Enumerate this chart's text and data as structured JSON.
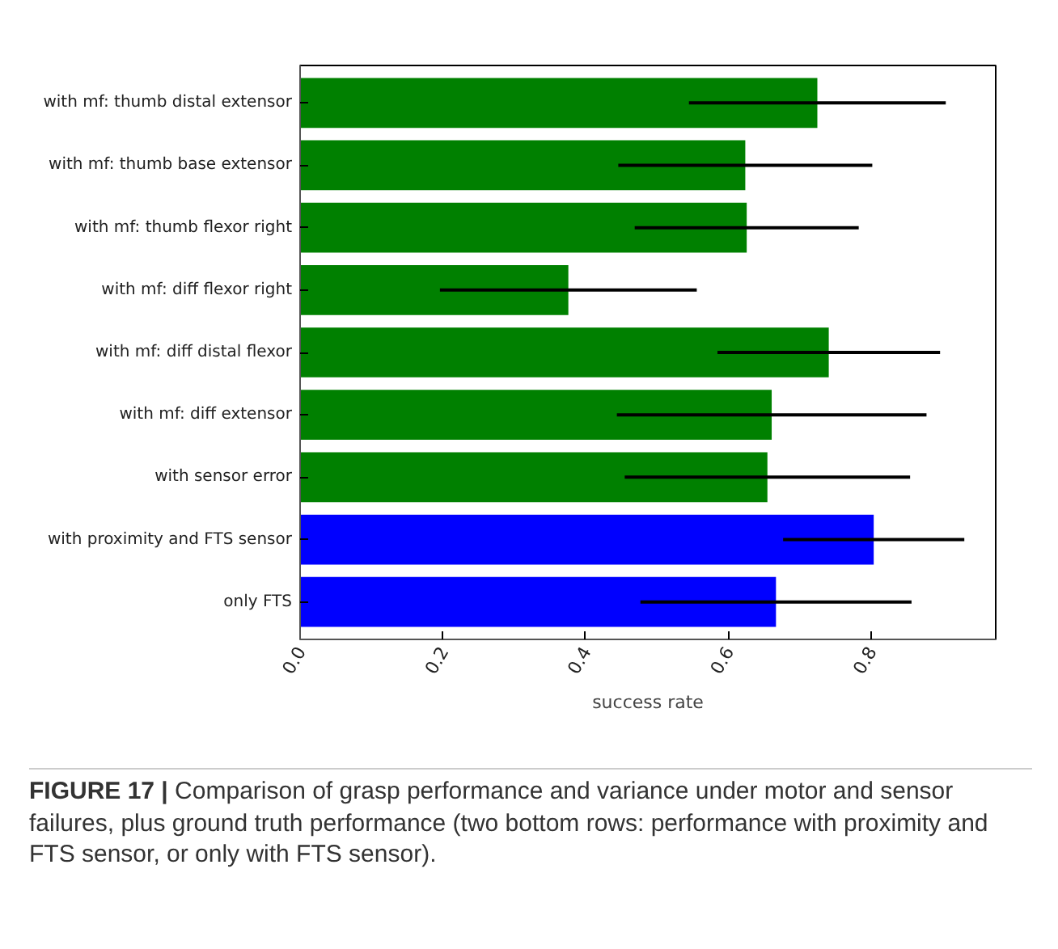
{
  "chart_data": {
    "type": "bar",
    "orientation": "horizontal",
    "xlabel": "success rate",
    "categories": [
      "with mf: thumb distal extensor",
      "with mf: thumb base extensor",
      "with mf: thumb flexor right",
      "with mf: diff flexor right",
      "with mf: diff distal flexor",
      "with mf: diff extensor",
      "with sensor error",
      "with proximity and FTS sensor",
      "only FTS"
    ],
    "values": [
      0.725,
      0.624,
      0.626,
      0.376,
      0.741,
      0.661,
      0.655,
      0.804,
      0.667
    ],
    "errors": [
      0.18,
      0.178,
      0.157,
      0.18,
      0.156,
      0.217,
      0.2,
      0.127,
      0.19
    ],
    "colors": [
      "#008000",
      "#008000",
      "#008000",
      "#008000",
      "#008000",
      "#008000",
      "#008000",
      "#0000ff",
      "#0000ff"
    ],
    "xlim": [
      0,
      0.975
    ],
    "xticks": [
      {
        "value": 0,
        "label": "0.0"
      },
      0.2,
      0.4,
      0.6,
      0.8
    ],
    "grid": false,
    "annotations": [
      "FIGURE 17 | Comparison of grasp performance and variance under motor and sensor failures, plus ground truth performance (two bottom rows: performance with proximity and FTS sensor, or only with FTS sensor)."
    ]
  }
}
